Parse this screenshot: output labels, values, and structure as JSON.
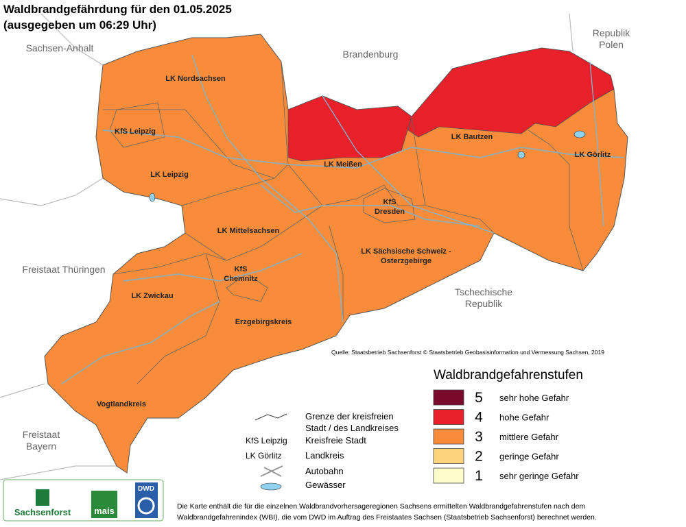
{
  "header": {
    "title": "Waldbrandgefährdung  für den  01.05.2025",
    "subtitle": "(ausgegeben um 06:29 Uhr)"
  },
  "neighbors": [
    {
      "lines": [
        "Sachsen-Anhalt"
      ]
    },
    {
      "lines": [
        "Brandenburg"
      ]
    },
    {
      "lines": [
        "Republik",
        "Polen"
      ]
    },
    {
      "lines": [
        "Freistaat Thüringen"
      ]
    },
    {
      "lines": [
        "Tschechische",
        "Republik"
      ]
    },
    {
      "lines": [
        "Freistaat",
        "Bayern"
      ]
    }
  ],
  "districts": [
    {
      "lines": [
        "LK Nordsachsen"
      ]
    },
    {
      "lines": [
        "KfS Leipzig"
      ]
    },
    {
      "lines": [
        "LK Leipzig"
      ]
    },
    {
      "lines": [
        "LK Meißen"
      ]
    },
    {
      "lines": [
        "LK Bautzen"
      ]
    },
    {
      "lines": [
        "LK Görlitz"
      ]
    },
    {
      "lines": [
        "KfS",
        "Dresden"
      ]
    },
    {
      "lines": [
        "LK Mittelsachsen"
      ]
    },
    {
      "lines": [
        "LK Sächsische Schweiz -",
        "Osterzgebirge"
      ]
    },
    {
      "lines": [
        "KfS",
        "Chemnitz"
      ]
    },
    {
      "lines": [
        "LK Zwickau"
      ]
    },
    {
      "lines": [
        "Erzgebirgskreis"
      ]
    },
    {
      "lines": [
        "Vogtlandkreis"
      ]
    }
  ],
  "source": "Quelle: Staatsbetrieb Sachsenforst  © Staatsbetrieb Geobasisinformation und Vermessung Sachsen, 2019",
  "legend": {
    "title": "Waldbrandgefahrenstufen",
    "items": [
      {
        "level": 5,
        "color": "#7a0a2c",
        "label": "sehr hohe Gefahr"
      },
      {
        "level": 4,
        "color": "#e8202a",
        "label": "hohe Gefahr"
      },
      {
        "level": 3,
        "color": "#f98c3b",
        "label": "mittlere Gefahr"
      },
      {
        "level": 2,
        "color": "#fdd37c",
        "label": "geringe Gefahr"
      },
      {
        "level": 1,
        "color": "#fffccc",
        "label": "sehr geringe Gefahr"
      }
    ]
  },
  "key": {
    "boundary": [
      "Grenze der kreisfreien",
      "Stadt / des Landkreises"
    ],
    "city_sample": "KfS Leipzig",
    "city_text": "Kreisfreie Stadt",
    "district_sample": "LK Görlitz",
    "district_text": "Landkreis",
    "motorway": "Autobahn",
    "water": "Gewässer"
  },
  "logos": {
    "sachsenforst": "Sachsenforst",
    "mais": "mais",
    "dwd": "DWD"
  },
  "footnote": [
    "Die Karte enthält die für die einzelnen Waldbrandvorhersageregionen Sachsens ermittelten Waldbrandgefahrenstufen nach dem",
    "Waldbrandgefahrenindex (WBI), die vom DWD im Auftrag des Freistaates Sachsen (Staatsbetrieb Sachsenforst) berechnet werden."
  ]
}
